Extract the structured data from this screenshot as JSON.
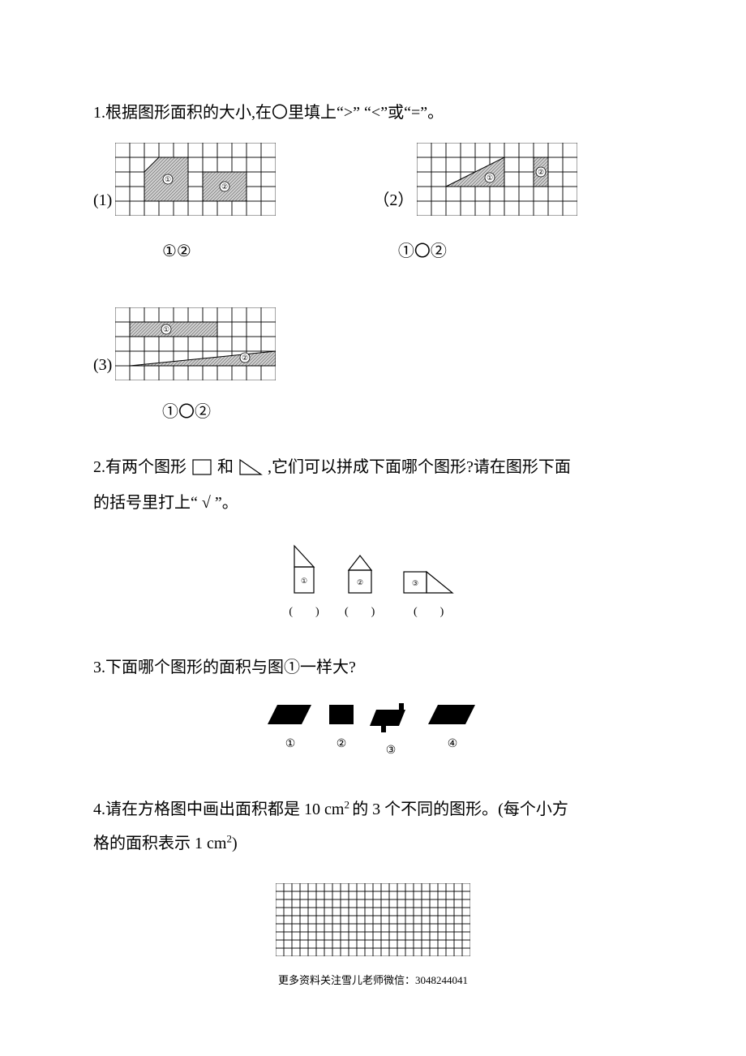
{
  "q1": {
    "text": "1.根据图形面积的大小,在〇里填上“>” “<”或“=”。",
    "parts": {
      "p1": {
        "label": "(1)",
        "answer": "①②"
      },
      "p2": {
        "label": "（2）",
        "answer": "①〇②"
      },
      "p3": {
        "label": "(3)",
        "answer": "①〇②"
      }
    },
    "grid": {
      "cell": 18,
      "cols1": 11,
      "rows1": 5,
      "cols3": 11,
      "rows3": 5
    }
  },
  "q2": {
    "text_part1": "2.有两个图形",
    "text_part2": "和",
    "text_part3": ",它们可以拼成下面哪个图形?请在图形下面",
    "text_line2": "的括号里打上“ √ ”。",
    "labels": [
      "①",
      "②",
      "③"
    ],
    "paren": "(　　)"
  },
  "q3": {
    "text": "3.下面哪个图形的面积与图①一样大?",
    "labels": [
      "①",
      "②",
      "③",
      "④"
    ]
  },
  "q4": {
    "text_part1": "4.请在方格图中画出面积都是 10 cm",
    "text_sup": "2 ",
    "text_part2": "的 3 个不同的图形。(每个小方",
    "text_line2_part1": "格的面积表示 1 cm",
    "text_line2_sup": "2",
    "text_line2_part2": ")",
    "grid": {
      "cols": 24,
      "rows": 9,
      "cell": 10
    }
  },
  "footer": "更多资料关注雪儿老师微信：3048244041",
  "colors": {
    "hatch": "#808080",
    "black": "#000000",
    "white": "#ffffff"
  }
}
